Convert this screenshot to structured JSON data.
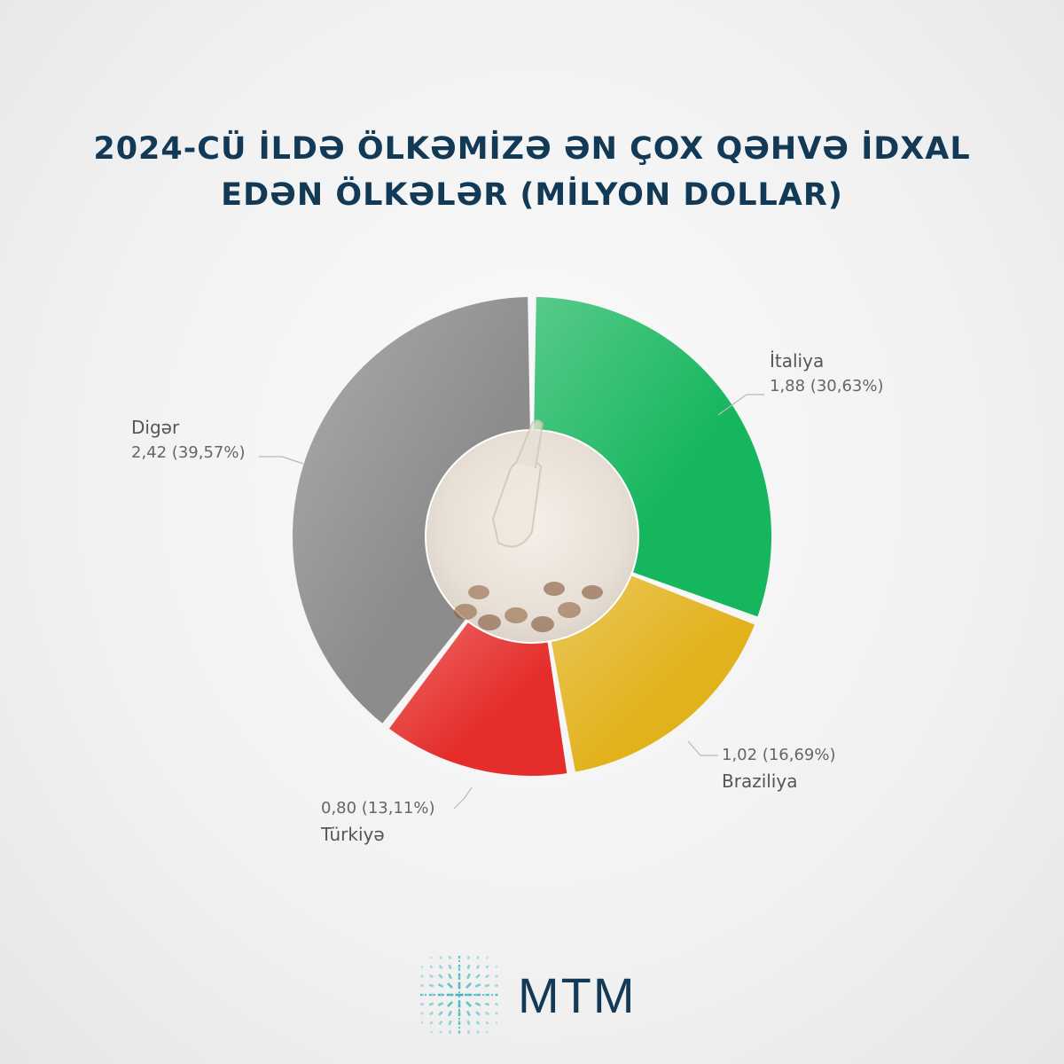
{
  "title": {
    "line1": "2024-CÜ İLDƏ ÖLKƏMİZƏ ƏN ÇOX QƏHVƏ İDXAL",
    "line2": "EDƏN ÖLKƏLƏR (MİLYON DOLLAR)"
  },
  "brand": {
    "name": "MTM"
  },
  "chart_data": {
    "type": "pie",
    "variant": "donut",
    "categories": [
      "İtaliya",
      "Braziliya",
      "Türkiyə",
      "Digər"
    ],
    "values": [
      1.88,
      1.02,
      0.8,
      2.42
    ],
    "value_labels": [
      "1,88 (30,63%)",
      "1,02 (16,69%)",
      "0,80 (13,11%)",
      "2,42 (39,57%)"
    ],
    "percentages": [
      30.63,
      16.69,
      13.11,
      39.57
    ],
    "colors": [
      "#16b65e",
      "#e2b21c",
      "#e52e2c",
      "#8c8c8c"
    ]
  },
  "colors": {
    "title": "#123a56",
    "logo": "#3ab8c2"
  }
}
